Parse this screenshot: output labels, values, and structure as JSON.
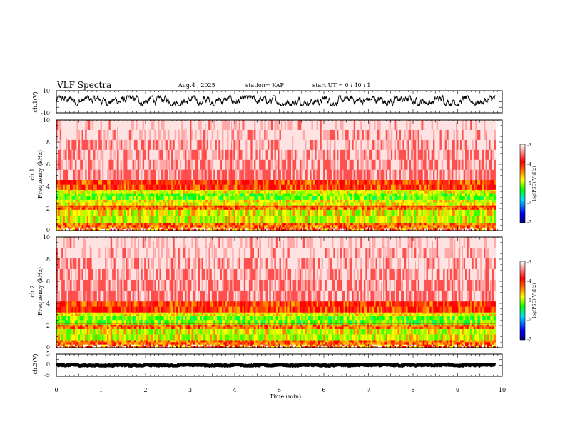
{
  "header": {
    "title": "VLF Spectra",
    "date": "Aug.4 , 2025",
    "station": "station= KAP",
    "start_time": "start UT = 0 : 40 : 1"
  },
  "colors": {
    "low": "#000080",
    "blue": "#0000ff",
    "cyan": "#00e0ff",
    "green": "#00ff00",
    "yellow": "#ffff00",
    "orange": "#ff8000",
    "red": "#ff0000",
    "white": "#ffffff",
    "trace": "#000000"
  },
  "chart_data": [
    {
      "type": "line",
      "name": "ch1-waveform",
      "ylabel": "ch.1(V)",
      "ylim": [
        -10,
        10
      ],
      "yticks": [
        "10",
        "-10"
      ],
      "xlim": [
        0,
        10
      ],
      "baseline": 1.2,
      "amplitude_range": [
        -3.5,
        5.5
      ],
      "end_x": 9.85
    },
    {
      "type": "heatmap",
      "name": "ch1-spectrogram",
      "ylabel_line1": "ch.1",
      "ylabel_line2": "Frequency (kHz)",
      "ylim": [
        0,
        10
      ],
      "yticks": [
        "0",
        "2",
        "4",
        "6",
        "8",
        "10"
      ],
      "bands": [
        {
          "from": 0,
          "to": 0.3,
          "level": "mixed"
        },
        {
          "from": 0.3,
          "to": 0.7,
          "level": "orange"
        },
        {
          "from": 0.7,
          "to": 1.9,
          "level": "yellow-green"
        },
        {
          "from": 1.9,
          "to": 2.3,
          "level": "orange"
        },
        {
          "from": 2.3,
          "to": 2.8,
          "level": "yellow"
        },
        {
          "from": 2.8,
          "to": 3.4,
          "level": "green"
        },
        {
          "from": 3.4,
          "to": 3.7,
          "level": "yellow"
        },
        {
          "from": 3.7,
          "to": 4.6,
          "level": "red"
        },
        {
          "from": 4.6,
          "to": 10,
          "level": "light"
        }
      ],
      "colorbar": {
        "label": "log(PSD)(V²/Hz)",
        "ticks": [
          "-3",
          "-4",
          "-5",
          "-6",
          "-7"
        ]
      }
    },
    {
      "type": "heatmap",
      "name": "ch2-spectrogram",
      "ylabel_line1": "ch.2",
      "ylabel_line2": "Frequency (kHz)",
      "ylim": [
        0,
        10
      ],
      "yticks": [
        "0",
        "2",
        "4",
        "6",
        "8",
        "10"
      ],
      "bands": [
        {
          "from": 0,
          "to": 0.3,
          "level": "mixed"
        },
        {
          "from": 0.3,
          "to": 0.7,
          "level": "orange"
        },
        {
          "from": 0.7,
          "to": 1.7,
          "level": "yellow-green"
        },
        {
          "from": 1.7,
          "to": 2.1,
          "level": "orange"
        },
        {
          "from": 2.1,
          "to": 2.9,
          "level": "green"
        },
        {
          "from": 2.9,
          "to": 3.2,
          "level": "yellow"
        },
        {
          "from": 3.2,
          "to": 4.2,
          "level": "red"
        },
        {
          "from": 4.2,
          "to": 10,
          "level": "light"
        }
      ],
      "colorbar": {
        "label": "log(PSD)(V²/Hz)",
        "ticks": [
          "-3",
          "-4",
          "-5",
          "-6",
          "-7"
        ]
      }
    },
    {
      "type": "line",
      "name": "ch3-waveform",
      "ylabel": "ch.3(V)",
      "ylim": [
        -5,
        5
      ],
      "yticks": [
        "5",
        "0",
        "-5"
      ],
      "xlim": [
        0,
        10
      ],
      "baseline": 0,
      "amplitude_range": [
        -0.3,
        0.3
      ],
      "end_x": 9.85,
      "xlabel": "Time (min)",
      "xticks": [
        "0",
        "1",
        "2",
        "3",
        "4",
        "5",
        "6",
        "7",
        "8",
        "9",
        "10"
      ]
    }
  ]
}
